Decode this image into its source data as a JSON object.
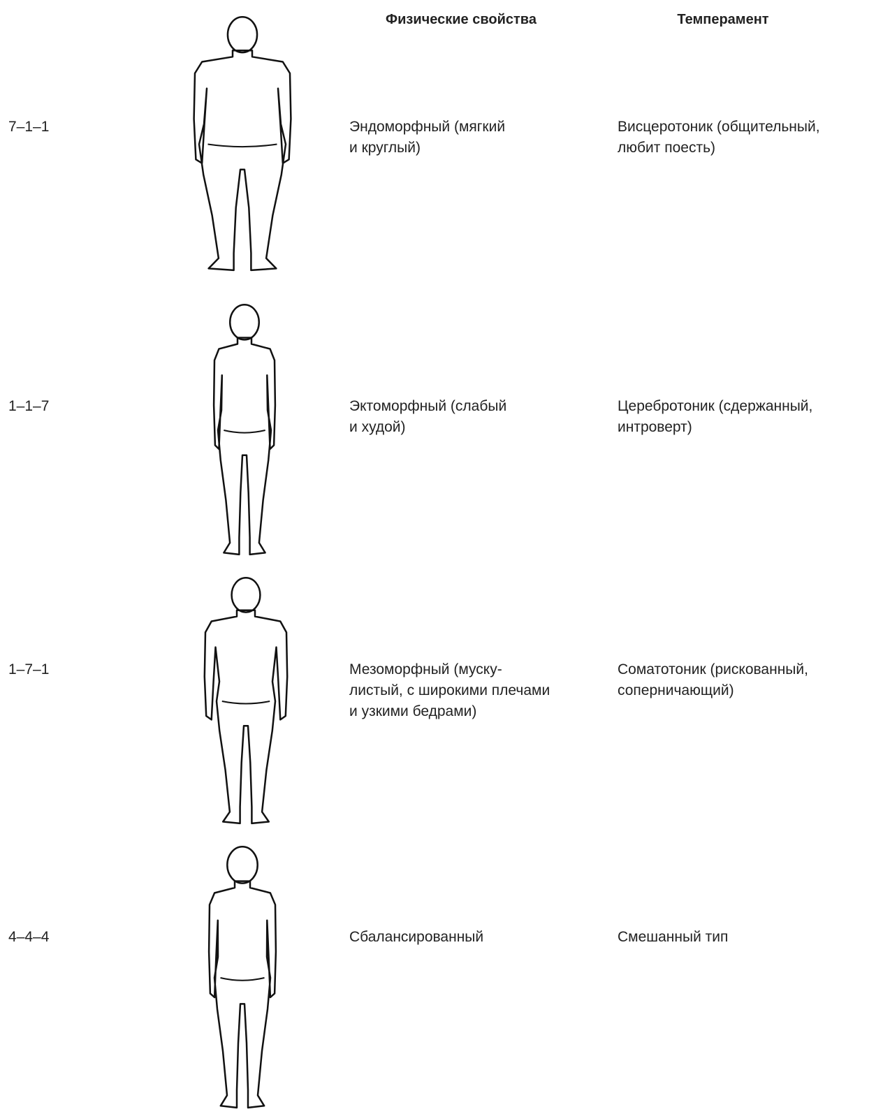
{
  "header": {
    "physical": "Физические свойства",
    "temperament": "Темперамент"
  },
  "rows": [
    {
      "code": "7–1–1",
      "physical": [
        "Эндоморфный (мягкий",
        "и круглый)"
      ],
      "temperament": [
        "Висцеротоник (общительный,",
        "любит поесть)"
      ]
    },
    {
      "code": "1–1–7",
      "physical": [
        "Эктоморфный (слабый",
        "и худой)"
      ],
      "temperament": [
        "Церебротоник (сдержанный,",
        "интроверт)"
      ]
    },
    {
      "code": "1–7–1",
      "physical": [
        "Мезоморфный (муску-",
        "листый, с широкими плечами",
        "и узкими бедрами)"
      ],
      "temperament": [
        "Соматотоник (рискованный,",
        "соперничающий)"
      ]
    },
    {
      "code": "4–4–4",
      "physical": [
        "Сбалансированный"
      ],
      "temperament": [
        "Смешанный тип"
      ]
    }
  ]
}
